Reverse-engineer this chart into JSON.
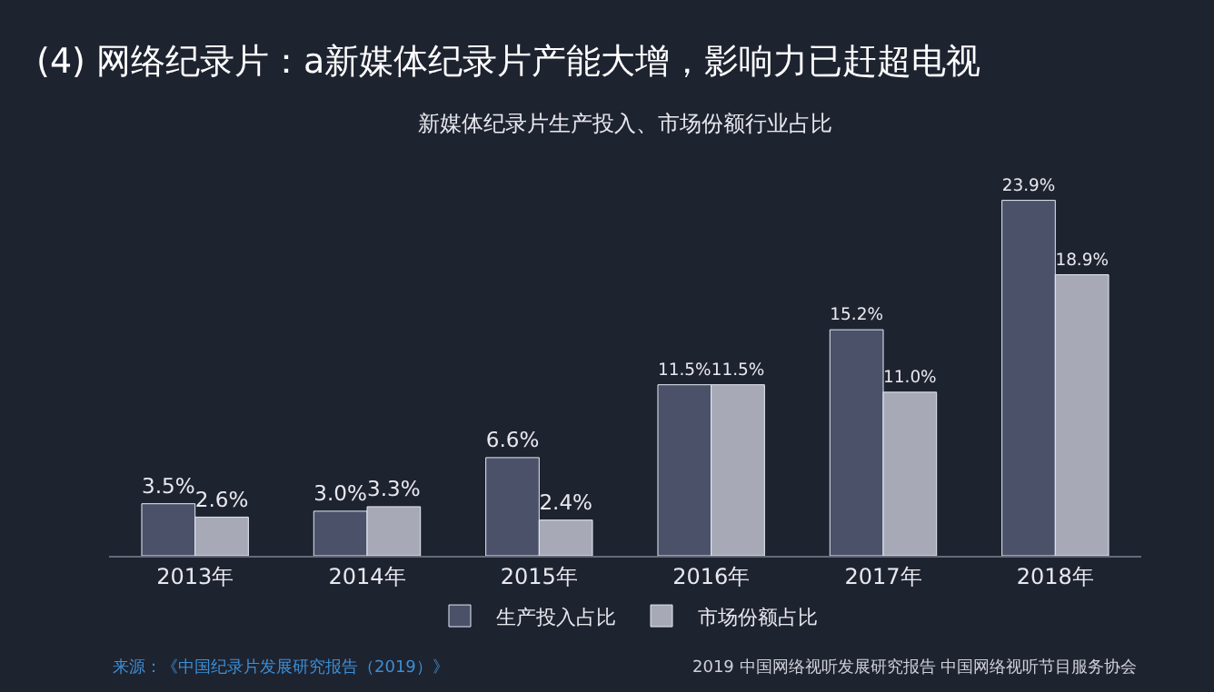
{
  "chart_data": {
    "type": "bar",
    "title": "(4) 网络纪录片：a新媒体纪录片产能大增，影响力已赶超电视",
    "subtitle": "新媒体纪录片生产投入、市场份额行业占比",
    "categories": [
      "2013年",
      "2014年",
      "2015年",
      "2016年",
      "2017年",
      "2018年"
    ],
    "series": [
      {
        "name": "生产投入占比",
        "color": "#4b5169",
        "values": [
          3.5,
          3.0,
          6.6,
          11.5,
          15.2,
          23.9
        ],
        "value_labels": [
          "3.5%",
          "3.0%",
          "6.6%",
          "11.5%",
          "15.2%",
          "23.9%"
        ]
      },
      {
        "name": "市场份额占比",
        "color": "#a8a9b6",
        "values": [
          2.6,
          3.3,
          2.4,
          11.5,
          11.0,
          18.9
        ],
        "value_labels": [
          "2.6%",
          "3.3%",
          "2.4%",
          "11.5%",
          "11.0%",
          "18.9%"
        ]
      }
    ],
    "legend": "bottom",
    "grid": false,
    "annotations": [
      "来源：《中国纪录片发展研究报告（2019）》",
      "2019 中国网络视听发展研究报告 中国网络视听节目服务协会"
    ]
  }
}
